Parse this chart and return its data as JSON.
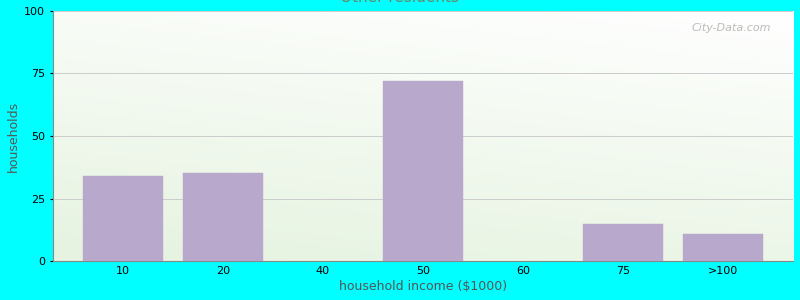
{
  "xlabel": "household income ($1000)",
  "ylabel": "households",
  "background_color": "#00FFFF",
  "plot_bg_gradient_topleft": "#dff0d8",
  "plot_bg_gradient_bottomright": "#f8f8ff",
  "bar_color": "#b8a8cc",
  "bar_edge_color": "#b8a8cc",
  "categories": [
    "10",
    "20",
    "40",
    "50",
    "60",
    "75",
    ">100"
  ],
  "values": [
    34,
    35,
    0,
    72,
    0,
    15,
    11
  ],
  "bar_positions": [
    1,
    2,
    3,
    4,
    5,
    6,
    7
  ],
  "xlim": [
    0.3,
    7.7
  ],
  "ylim": [
    0,
    100
  ],
  "yticks": [
    0,
    25,
    50,
    75,
    100
  ],
  "grid_color": "#cccccc",
  "watermark": "City-Data.com",
  "title_fontsize": 13,
  "subtitle_fontsize": 11,
  "subtitle_color": "#668866",
  "ylabel_fontsize": 9,
  "xlabel_fontsize": 9,
  "tick_fontsize": 8,
  "title_color": "#222222"
}
